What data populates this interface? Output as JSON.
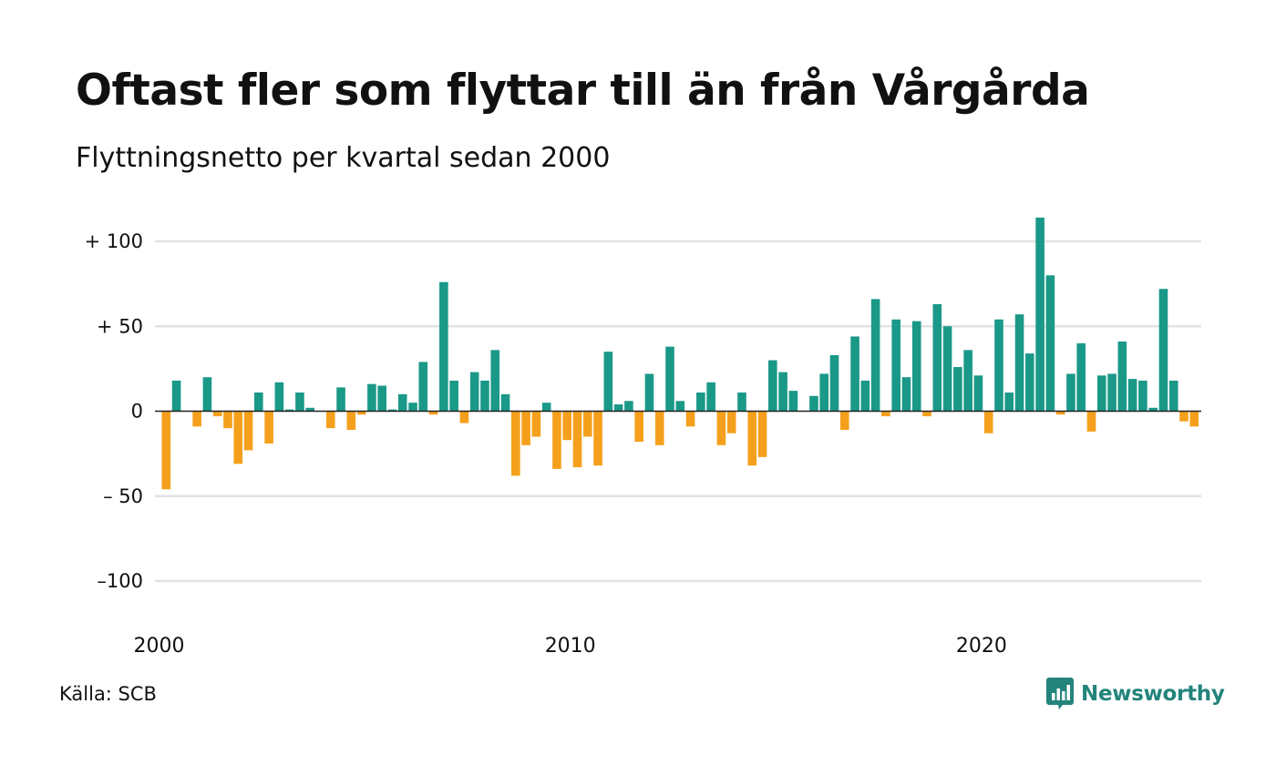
{
  "header": {
    "title": "Oftast fler som flyttar till än från Vårgårda",
    "subtitle": "Flyttningsnetto per kvartal sedan 2000"
  },
  "footer": {
    "source": "Källa: SCB",
    "brand": "Newsworthy"
  },
  "colors": {
    "positive": "#1a9988",
    "negative": "#f5a01c",
    "grid": "#e2e2e2",
    "brand": "#23847b"
  },
  "chart_data": {
    "type": "bar",
    "title": "Oftast fler som flyttar till än från Vårgårda",
    "subtitle": "Flyttningsnetto per kvartal sedan 2000",
    "xlabel": "",
    "ylabel": "",
    "ylim": [
      -115,
      115
    ],
    "grid": true,
    "y_ticks": [
      {
        "value": 100,
        "label": "+ 100"
      },
      {
        "value": 50,
        "label": "+  50"
      },
      {
        "value": 0,
        "label": "0"
      },
      {
        "value": -50,
        "label": "– 50"
      },
      {
        "value": -100,
        "label": "–100"
      }
    ],
    "x_ticks": [
      {
        "year": 2000,
        "label": "2000"
      },
      {
        "year": 2010,
        "label": "2010"
      },
      {
        "year": 2020,
        "label": "2020"
      }
    ],
    "start_year": 2000,
    "start_quarter": 1,
    "values": [
      -46,
      18,
      0,
      -9,
      20,
      -3,
      -10,
      -31,
      -23,
      11,
      -19,
      17,
      1,
      11,
      2,
      0,
      -10,
      14,
      -11,
      -2,
      16,
      15,
      1,
      10,
      5,
      29,
      -2,
      76,
      18,
      -7,
      23,
      18,
      36,
      10,
      -38,
      -20,
      -15,
      5,
      -34,
      -17,
      -33,
      -15,
      -32,
      35,
      4,
      6,
      -18,
      22,
      -20,
      38,
      6,
      -9,
      11,
      17,
      -20,
      -13,
      11,
      -32,
      -27,
      30,
      23,
      12,
      0,
      9,
      22,
      33,
      -11,
      44,
      18,
      66,
      -3,
      54,
      20,
      53,
      -3,
      63,
      50,
      26,
      36,
      21,
      -13,
      54,
      11,
      57,
      34,
      114,
      80,
      -2,
      22,
      40,
      -12,
      21,
      22,
      41,
      19,
      18,
      2,
      72,
      18,
      -6,
      -9
    ]
  }
}
